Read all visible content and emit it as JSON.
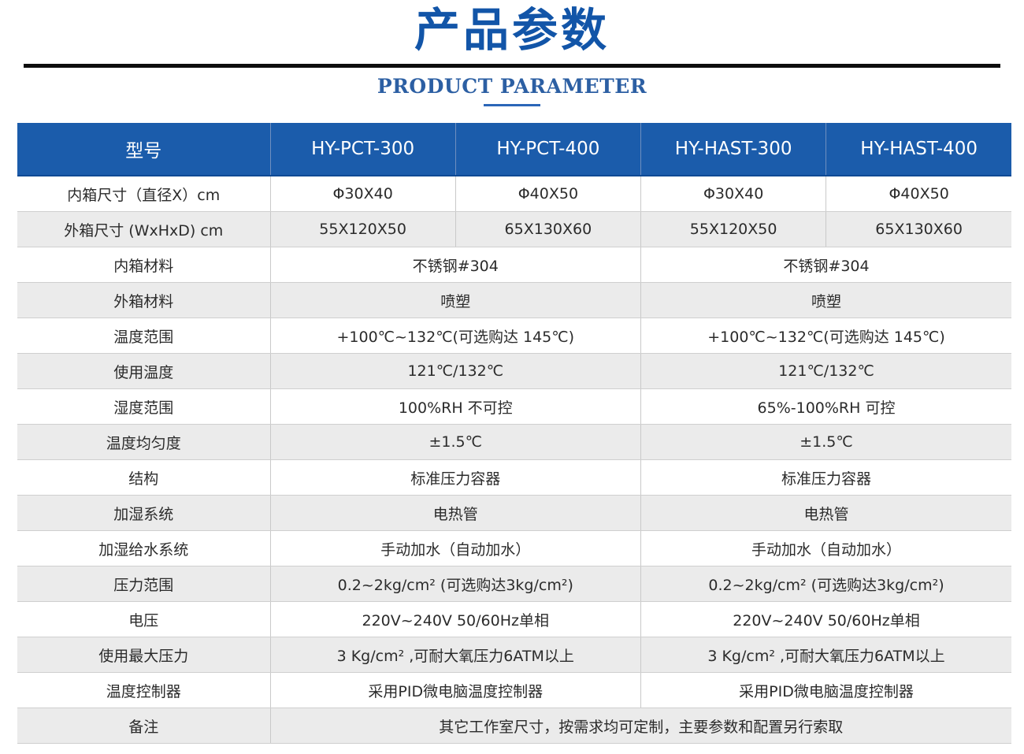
{
  "page": {
    "title": "产品参数",
    "subtitle": "PRODUCT PARAMETER"
  },
  "colors": {
    "header_bg": "#1b5cab",
    "title": "#1255a8",
    "subtitle": "#2c5fa3",
    "row_alt": "#ebebeb"
  },
  "table": {
    "headers": [
      "型号",
      "HY-PCT-300",
      "HY-PCT-400",
      "HY-HAST-300",
      "HY-HAST-400"
    ],
    "four_col_rows": [
      {
        "label": "内箱尺寸（直径X）cm",
        "values": [
          "Φ30X40",
          "Φ40X50",
          "Φ30X40",
          "Φ40X50"
        ]
      },
      {
        "label": "外箱尺寸 (WxHxD) cm",
        "values": [
          "55X120X50",
          "65X130X60",
          "55X120X50",
          "65X130X60"
        ]
      }
    ],
    "pair_rows": [
      {
        "label": "内箱材料",
        "pct": "不锈钢#304",
        "hast": "不锈钢#304"
      },
      {
        "label": "外箱材料",
        "pct": "喷塑",
        "hast": "喷塑"
      },
      {
        "label": "温度范围",
        "pct": "+100℃~132℃(可选购达 145℃)",
        "hast": "+100℃~132℃(可选购达 145℃)"
      },
      {
        "label": "使用温度",
        "pct": "121℃/132℃",
        "hast": "121℃/132℃"
      },
      {
        "label": "湿度范围",
        "pct": "100%RH 不可控",
        "hast": "65%-100%RH 可控"
      },
      {
        "label": "温度均匀度",
        "pct": "±1.5℃",
        "hast": "±1.5℃"
      },
      {
        "label": "结构",
        "pct": "标准压力容器",
        "hast": "标准压力容器"
      },
      {
        "label": "加湿系统",
        "pct": "电热管",
        "hast": "电热管"
      },
      {
        "label": "加湿给水系统",
        "pct": "手动加水（自动加水）",
        "hast": "手动加水（自动加水）"
      },
      {
        "label": "压力范围",
        "pct": "0.2~2kg/cm² (可选购达3kg/cm²)",
        "hast": "0.2~2kg/cm² (可选购达3kg/cm²)"
      },
      {
        "label": "电压",
        "pct": "220V~240V 50/60Hz单相",
        "hast": "220V~240V 50/60Hz单相"
      },
      {
        "label": "使用最大压力",
        "pct": "3 Kg/cm² ,可耐大氧压力6ATM以上",
        "hast": "3 Kg/cm² ,可耐大氧压力6ATM以上"
      },
      {
        "label": "温度控制器",
        "pct": "采用PID微电脑温度控制器",
        "hast": "采用PID微电脑温度控制器"
      }
    ],
    "remark_row": {
      "label": "备注",
      "value": "其它工作室尺寸，按需求均可定制，主要参数和配置另行索取"
    }
  }
}
